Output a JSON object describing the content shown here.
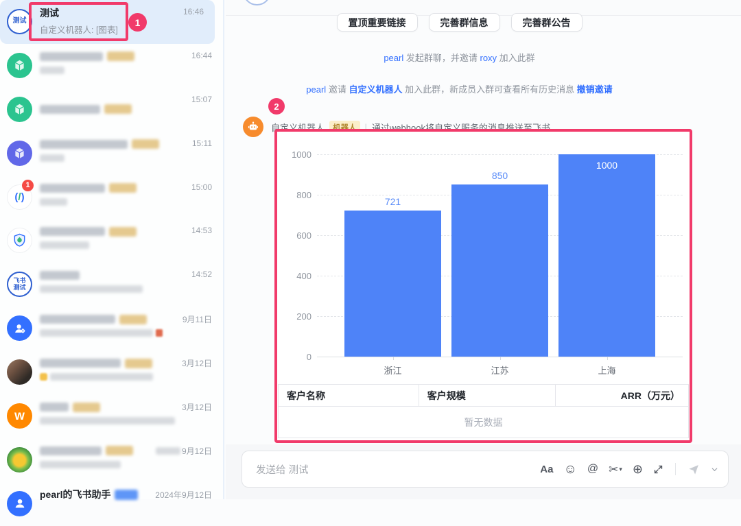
{
  "accent_colors": {
    "link_blue": "#3370FF",
    "bar_blue": "#4E83F8",
    "annotation_pink": "#F13A6A",
    "selected_row": "#E1EDFB",
    "tag_yellow_bg": "#FBEEC9"
  },
  "annotations": {
    "step1": "1",
    "step2": "2"
  },
  "sidebar": {
    "items": [
      {
        "name": "测试",
        "avatar_text": "测试",
        "subtitle": "自定义机器人: [图表]",
        "time": "16:46",
        "selected": true
      },
      {
        "time": "16:44",
        "avatar": "green-cube",
        "blurred": true
      },
      {
        "time": "15:07",
        "avatar": "green-cube",
        "blurred": true
      },
      {
        "time": "15:11",
        "avatar": "indigo-cube",
        "blurred": true
      },
      {
        "time": "15:00",
        "avatar": "developer-logo",
        "unread": "1",
        "blurred": true
      },
      {
        "time": "14:53",
        "avatar": "security-shield",
        "blurred": true
      },
      {
        "time": "14:52",
        "avatar": "feishu-test-ring",
        "avatar_text_line1": "飞书",
        "avatar_text_line2": "测试",
        "blurred": true
      },
      {
        "time": "9月11日",
        "avatar": "admin-assistant",
        "blurred": true
      },
      {
        "time": "3月12日",
        "avatar": "woman-photo",
        "blurred": true
      },
      {
        "time": "3月12日",
        "avatar": "minutes-orange",
        "avatar_text": "w",
        "blurred": true
      },
      {
        "time": "9月12日",
        "avatar": "sunflower-photo",
        "blurred": true
      },
      {
        "name": "pearl的飞书助手",
        "time": "2024年9月12日",
        "avatar": "blue-person",
        "blurred_badge": "blue"
      }
    ]
  },
  "header_buttons": [
    {
      "label": "置顶重要链接"
    },
    {
      "label": "完善群信息"
    },
    {
      "label": "完善群公告"
    }
  ],
  "system_messages": {
    "msg1": [
      {
        "t": "pearl",
        "c": "link"
      },
      {
        "t": " 发起群聊，并邀请 ",
        "c": ""
      },
      {
        "t": "roxy",
        "c": "link"
      },
      {
        "t": " 加入此群",
        "c": ""
      }
    ],
    "msg2": [
      {
        "t": "pearl",
        "c": "link"
      },
      {
        "t": " 邀请 ",
        "c": ""
      },
      {
        "t": "自定义机器人",
        "c": "linkb"
      },
      {
        "t": " 加入此群，新成员入群可查看所有历史消息 ",
        "c": ""
      },
      {
        "t": "撤销邀请",
        "c": "linkb"
      }
    ]
  },
  "bot_message": {
    "sender": "自定义机器人",
    "tag": "机器人",
    "separator": "|",
    "description": "通过webhook将自定义服务的消息推送至飞书"
  },
  "chart_data": {
    "type": "bar",
    "categories": [
      "浙江",
      "江苏",
      "上海"
    ],
    "values": [
      721,
      850,
      1000
    ],
    "yticks": [
      1000,
      800,
      600,
      400,
      200,
      0
    ],
    "ylim": [
      0,
      1000
    ],
    "title": "",
    "xlabel": "",
    "ylabel": "",
    "grid": "dashed-horizontal",
    "legend": "none",
    "bar_color": "#4E83F8",
    "value_label_color": "#5A8CF8",
    "max_value_label_style": "white-inside-bar"
  },
  "table": {
    "headers": [
      "客户名称",
      "客户规模",
      "ARR（万元）"
    ],
    "rows": [],
    "empty_text": "暂无数据"
  },
  "composer": {
    "placeholder": "发送给 测试",
    "icons": [
      {
        "name": "text-format",
        "glyph": "Aa"
      },
      {
        "name": "emoji",
        "glyph": "☺"
      },
      {
        "name": "mention",
        "glyph": "@"
      },
      {
        "name": "screenshot-scissors",
        "glyph": "✂"
      },
      {
        "name": "insert-plus",
        "glyph": "⊕"
      }
    ]
  }
}
